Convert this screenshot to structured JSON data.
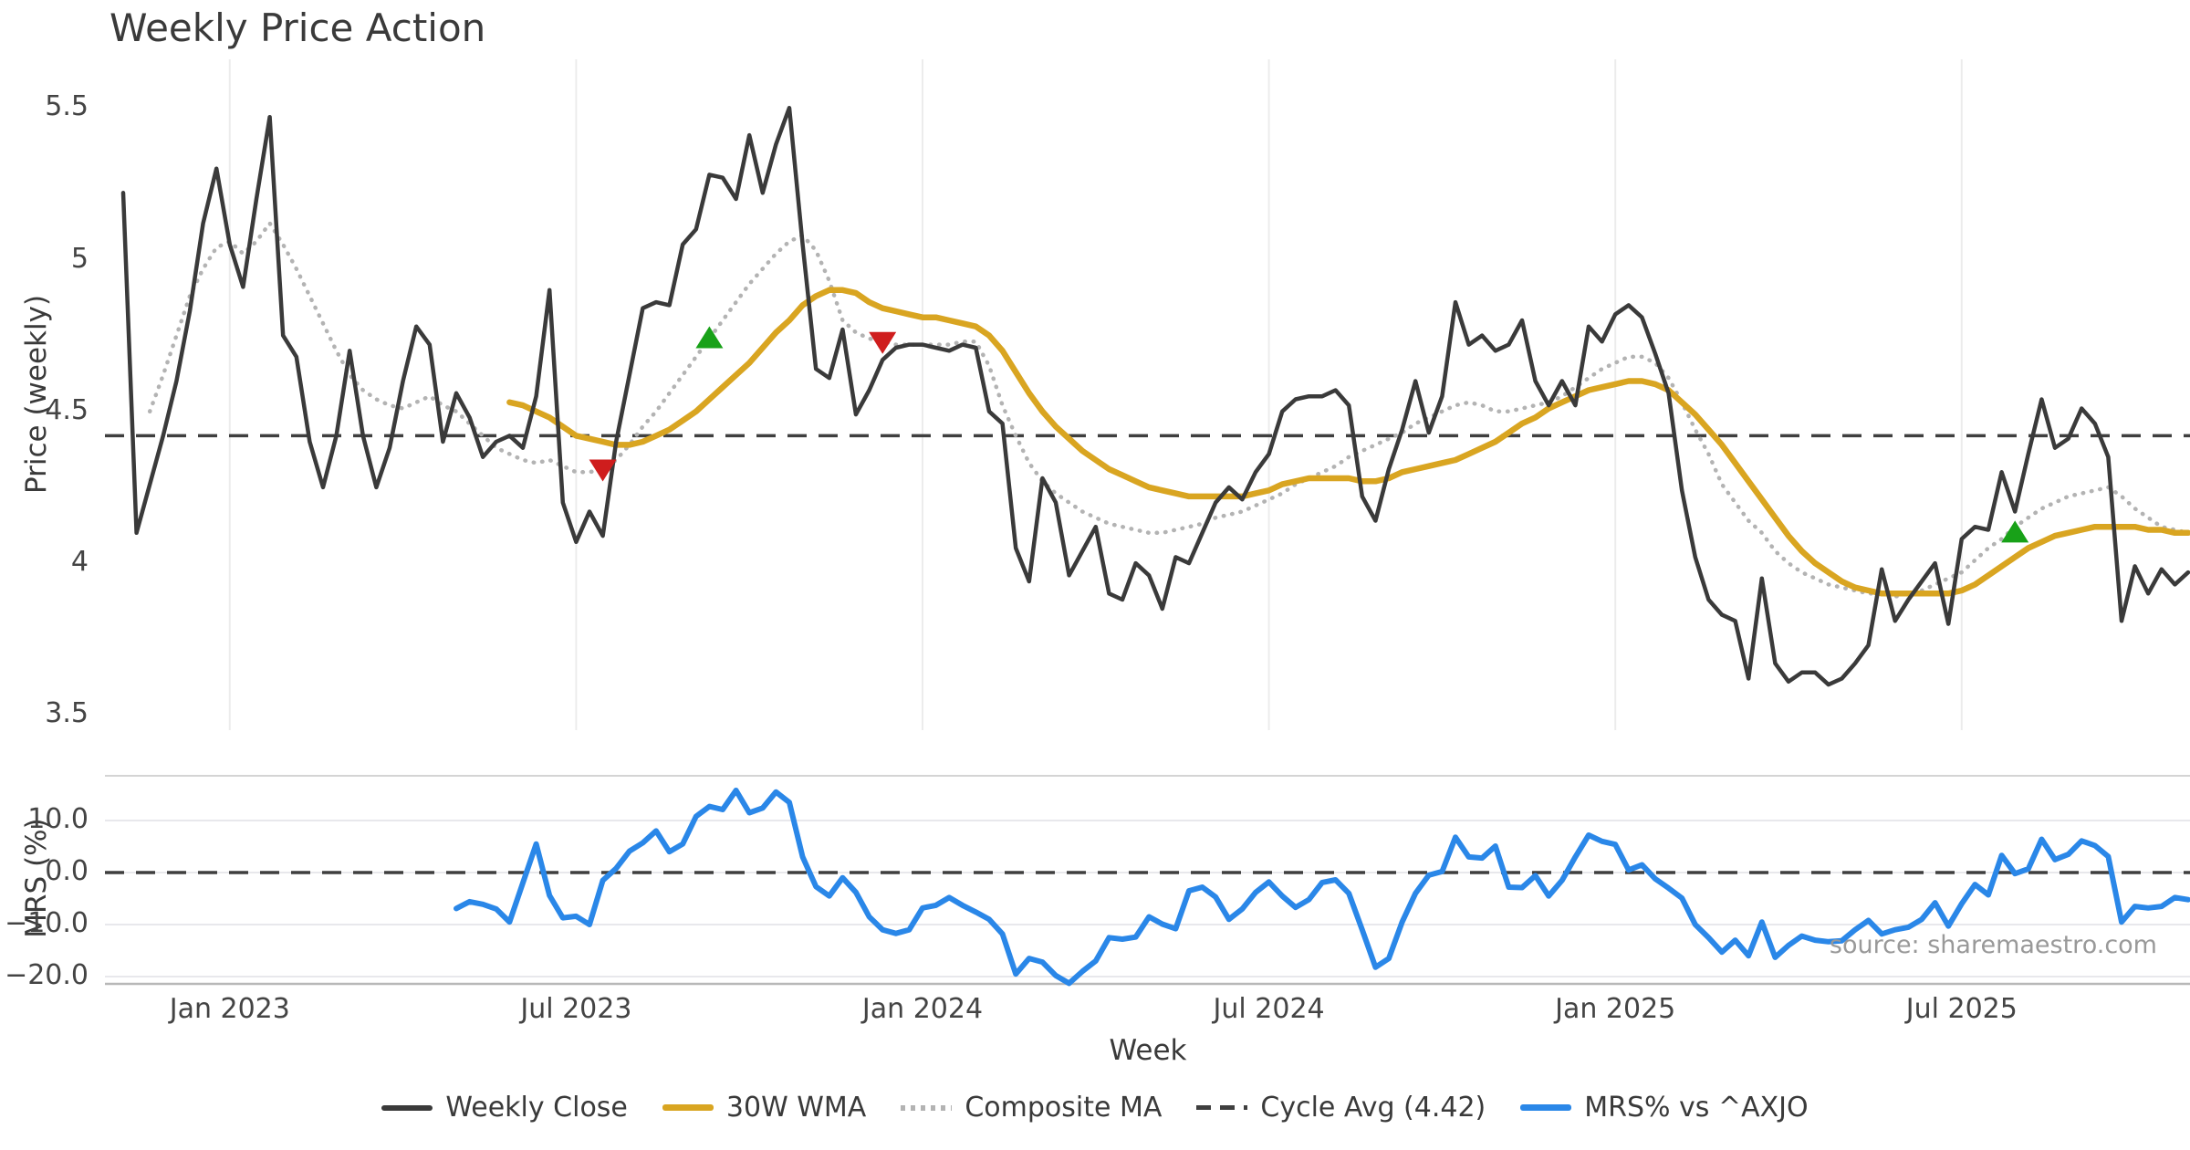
{
  "title": "Weekly Price Action",
  "xlabel": "Week",
  "source": "source: sharemaestro.com",
  "colors": {
    "weekly_close": "#3a3a3a",
    "wma30": "#d9a521",
    "composite": "#b3b3b3",
    "cycle_avg": "#3f3f3f",
    "mrs": "#2a87e8",
    "buy_marker": "#18a118",
    "sell_marker": "#cf1d1d",
    "grid": "#ececec",
    "spine": "#b8b8b8"
  },
  "legend": [
    {
      "label": "Weekly Close",
      "series": "weekly_close"
    },
    {
      "label": "30W WMA",
      "series": "wma30"
    },
    {
      "label": "Composite MA",
      "series": "composite"
    },
    {
      "label": "Cycle Avg (4.42)",
      "series": "cycle_avg"
    },
    {
      "label": "MRS% vs ^AXJO",
      "series": "mrs"
    }
  ],
  "chart_data": [
    {
      "type": "line",
      "panel": "price",
      "title": "Weekly Price Action",
      "ylabel": "Price (weekly)",
      "xlabel": "Week",
      "start_date": "2022-11-06",
      "interval_days": 7,
      "ylim": [
        3.45,
        5.66
      ],
      "grid": "vertical-only",
      "yticks": [
        {
          "label": "5.5",
          "value": 5.5
        },
        {
          "label": "5",
          "value": 5.0
        },
        {
          "label": "4.5",
          "value": 4.5
        },
        {
          "label": "4",
          "value": 4.0
        },
        {
          "label": "3.5",
          "value": 3.5
        }
      ],
      "xticks": [
        {
          "label": "Jan 2023",
          "week": 8
        },
        {
          "label": "Jul 2023",
          "week": 34
        },
        {
          "label": "Jan 2024",
          "week": 60
        },
        {
          "label": "Jul 2024",
          "week": 86
        },
        {
          "label": "Jan 2025",
          "week": 112
        },
        {
          "label": "Jul 2025",
          "week": 138
        }
      ],
      "hlines": [
        {
          "name": "Cycle Avg",
          "value": 4.42,
          "style": "dashed"
        }
      ],
      "series": [
        {
          "name": "Weekly Close",
          "color": "#3a3a3a",
          "width": 4.5,
          "dash": "solid",
          "values": [
            5.22,
            4.1,
            4.26,
            4.42,
            4.6,
            4.83,
            5.12,
            5.3,
            5.05,
            4.91,
            5.2,
            5.47,
            4.75,
            4.68,
            4.4,
            4.25,
            4.42,
            4.7,
            4.42,
            4.25,
            4.38,
            4.6,
            4.78,
            4.72,
            4.4,
            4.56,
            4.48,
            4.35,
            4.4,
            4.42,
            4.38,
            4.55,
            4.9,
            4.2,
            4.07,
            4.17,
            4.09,
            4.4,
            4.62,
            4.84,
            4.86,
            4.85,
            5.05,
            5.1,
            5.28,
            5.27,
            5.2,
            5.41,
            5.22,
            5.38,
            5.5,
            5.05,
            4.64,
            4.61,
            4.77,
            4.49,
            4.57,
            4.67,
            4.71,
            4.72,
            4.72,
            4.71,
            4.7,
            4.72,
            4.71,
            4.5,
            4.46,
            4.05,
            3.94,
            4.28,
            4.2,
            3.96,
            4.04,
            4.12,
            3.9,
            3.88,
            4.0,
            3.96,
            3.85,
            4.02,
            4.0,
            4.1,
            4.2,
            4.25,
            4.21,
            4.3,
            4.36,
            4.5,
            4.54,
            4.55,
            4.55,
            4.57,
            4.52,
            4.22,
            4.14,
            4.31,
            4.44,
            4.6,
            4.43,
            4.55,
            4.86,
            4.72,
            4.75,
            4.7,
            4.72,
            4.8,
            4.6,
            4.52,
            4.6,
            4.52,
            4.78,
            4.73,
            4.82,
            4.85,
            4.81,
            4.69,
            4.56,
            4.24,
            4.02,
            3.88,
            3.83,
            3.81,
            3.62,
            3.95,
            3.67,
            3.61,
            3.64,
            3.64,
            3.6,
            3.62,
            3.67,
            3.73,
            3.98,
            3.81,
            3.88,
            3.94,
            4.0,
            3.8,
            4.08,
            4.12,
            4.11,
            4.3,
            4.17,
            4.36,
            4.54,
            4.38,
            4.41,
            4.51,
            4.46,
            4.35,
            3.81,
            3.99,
            3.9,
            3.98,
            3.93,
            3.97
          ]
        },
        {
          "name": "30W WMA",
          "color": "#d9a521",
          "width": 6.5,
          "dash": "solid",
          "values": [
            null,
            null,
            null,
            null,
            null,
            null,
            null,
            null,
            null,
            null,
            null,
            null,
            null,
            null,
            null,
            null,
            null,
            null,
            null,
            null,
            null,
            null,
            null,
            null,
            null,
            null,
            null,
            null,
            null,
            4.53,
            4.52,
            4.5,
            4.48,
            4.45,
            4.42,
            4.41,
            4.4,
            4.39,
            4.39,
            4.4,
            4.42,
            4.44,
            4.47,
            4.5,
            4.54,
            4.58,
            4.62,
            4.66,
            4.71,
            4.76,
            4.8,
            4.85,
            4.88,
            4.9,
            4.9,
            4.89,
            4.86,
            4.84,
            4.83,
            4.82,
            4.81,
            4.81,
            4.8,
            4.79,
            4.78,
            4.75,
            4.7,
            4.63,
            4.56,
            4.5,
            4.45,
            4.41,
            4.37,
            4.34,
            4.31,
            4.29,
            4.27,
            4.25,
            4.24,
            4.23,
            4.22,
            4.22,
            4.22,
            4.22,
            4.22,
            4.23,
            4.24,
            4.26,
            4.27,
            4.28,
            4.28,
            4.28,
            4.28,
            4.27,
            4.27,
            4.28,
            4.3,
            4.31,
            4.32,
            4.33,
            4.34,
            4.36,
            4.38,
            4.4,
            4.43,
            4.46,
            4.48,
            4.51,
            4.53,
            4.55,
            4.57,
            4.58,
            4.59,
            4.6,
            4.6,
            4.59,
            4.57,
            4.53,
            4.49,
            4.44,
            4.39,
            4.33,
            4.27,
            4.21,
            4.15,
            4.09,
            4.04,
            4.0,
            3.97,
            3.94,
            3.92,
            3.91,
            3.9,
            3.9,
            3.9,
            3.9,
            3.9,
            3.9,
            3.91,
            3.93,
            3.96,
            3.99,
            4.02,
            4.05,
            4.07,
            4.09,
            4.1,
            4.11,
            4.12,
            4.12,
            4.12,
            4.12,
            4.11,
            4.11,
            4.1,
            4.1
          ]
        },
        {
          "name": "Composite MA",
          "color": "#b3b3b3",
          "width": 4.5,
          "dash": "dotted",
          "values": [
            null,
            null,
            4.5,
            4.62,
            4.75,
            4.88,
            4.97,
            5.04,
            5.06,
            5.02,
            5.06,
            5.12,
            5.05,
            4.97,
            4.88,
            4.79,
            4.7,
            4.62,
            4.57,
            4.54,
            4.52,
            4.51,
            4.53,
            4.55,
            4.52,
            4.5,
            4.46,
            4.42,
            4.38,
            4.36,
            4.34,
            4.33,
            4.34,
            4.32,
            4.3,
            4.3,
            4.31,
            4.34,
            4.39,
            4.45,
            4.5,
            4.56,
            4.62,
            4.68,
            4.74,
            4.8,
            4.86,
            4.92,
            4.97,
            5.02,
            5.06,
            5.08,
            5.03,
            4.93,
            4.8,
            4.76,
            4.74,
            4.73,
            4.72,
            4.72,
            4.72,
            4.72,
            4.72,
            4.73,
            4.73,
            4.65,
            4.52,
            4.42,
            4.33,
            4.27,
            4.23,
            4.2,
            4.17,
            4.15,
            4.13,
            4.12,
            4.11,
            4.1,
            4.1,
            4.11,
            4.12,
            4.13,
            4.15,
            4.16,
            4.17,
            4.19,
            4.21,
            4.23,
            4.26,
            4.28,
            4.3,
            4.32,
            4.35,
            4.37,
            4.39,
            4.41,
            4.43,
            4.46,
            4.48,
            4.5,
            4.52,
            4.53,
            4.52,
            4.5,
            4.5,
            4.51,
            4.52,
            4.53,
            4.55,
            4.58,
            4.61,
            4.64,
            4.66,
            4.68,
            4.68,
            4.66,
            4.61,
            4.53,
            4.44,
            4.36,
            4.26,
            4.2,
            4.14,
            4.1,
            4.04,
            4.0,
            3.97,
            3.95,
            3.93,
            3.92,
            3.91,
            3.9,
            3.9,
            3.89,
            3.9,
            3.91,
            3.93,
            3.95,
            3.97,
            4.01,
            4.05,
            4.08,
            4.12,
            4.15,
            4.18,
            4.2,
            4.22,
            4.23,
            4.24,
            4.25,
            4.22,
            4.18,
            4.15,
            4.12,
            4.11,
            4.1
          ]
        }
      ],
      "markers": [
        {
          "week": 36,
          "value": 4.31,
          "type": "sell"
        },
        {
          "week": 44,
          "value": 4.74,
          "type": "buy"
        },
        {
          "week": 57,
          "value": 4.73,
          "type": "sell"
        },
        {
          "week": 142,
          "value": 4.1,
          "type": "buy"
        }
      ]
    },
    {
      "type": "line",
      "panel": "mrs",
      "ylabel": "MRS (%)",
      "start_date": "2022-11-06",
      "interval_days": 7,
      "ylim": [
        -21.4,
        18.6
      ],
      "grid": "horizontal-only",
      "yticks": [
        {
          "label": "10.0",
          "value": 10
        },
        {
          "label": "0.0",
          "value": 0
        },
        {
          "label": "−10.0",
          "value": -10
        },
        {
          "label": "−20.0",
          "value": -20
        }
      ],
      "hlines": [
        {
          "name": "Zero",
          "value": 0,
          "style": "dashed"
        }
      ],
      "series": [
        {
          "name": "MRS% vs ^AXJO",
          "color": "#2a87e8",
          "width": 6,
          "dash": "solid",
          "values": [
            null,
            null,
            null,
            null,
            null,
            null,
            null,
            null,
            null,
            null,
            null,
            null,
            null,
            null,
            null,
            null,
            null,
            null,
            null,
            null,
            null,
            null,
            null,
            null,
            null,
            -6.9,
            -5.6,
            -6.1,
            -7.0,
            -9.5,
            -2.0,
            5.5,
            -4.4,
            -8.7,
            -8.4,
            -10.0,
            -1.5,
            0.8,
            4.1,
            5.7,
            8.0,
            4.0,
            5.5,
            10.8,
            12.7,
            12.1,
            15.8,
            11.5,
            12.4,
            15.5,
            13.5,
            3.0,
            -2.7,
            -4.5,
            -1.0,
            -3.8,
            -8.5,
            -11.0,
            -11.7,
            -11.0,
            -6.8,
            -6.3,
            -4.8,
            -6.3,
            -7.6,
            -9.0,
            -11.8,
            -19.5,
            -16.5,
            -17.2,
            -19.8,
            -21.3,
            -19.0,
            -17.0,
            -12.5,
            -12.8,
            -12.4,
            -8.5,
            -9.9,
            -10.8,
            -3.5,
            -2.8,
            -4.7,
            -9.0,
            -7.0,
            -3.8,
            -1.8,
            -4.5,
            -6.7,
            -5.2,
            -1.9,
            -1.4,
            -4.0,
            -11.0,
            -18.2,
            -16.5,
            -9.5,
            -4.0,
            -0.5,
            0.2,
            6.8,
            3.0,
            2.8,
            5.1,
            -2.8,
            -2.9,
            -0.6,
            -4.5,
            -1.5,
            3.0,
            7.2,
            6.0,
            5.4,
            0.5,
            1.5,
            -1.2,
            -3.0,
            -4.9,
            -10.0,
            -12.5,
            -15.3,
            -13.0,
            -16.0,
            -9.5,
            -16.3,
            -14.0,
            -12.2,
            -13.0,
            -13.3,
            -13.1,
            -11.0,
            -9.2,
            -11.8,
            -11.0,
            -10.5,
            -9.0,
            -5.8,
            -10.3,
            -6.0,
            -2.3,
            -4.3,
            3.3,
            -0.2,
            0.7,
            6.4,
            2.5,
            3.5,
            6.1,
            5.2,
            3.1,
            -9.5,
            -6.5,
            -6.8,
            -6.5,
            -4.8,
            -5.2
          ]
        }
      ]
    }
  ]
}
